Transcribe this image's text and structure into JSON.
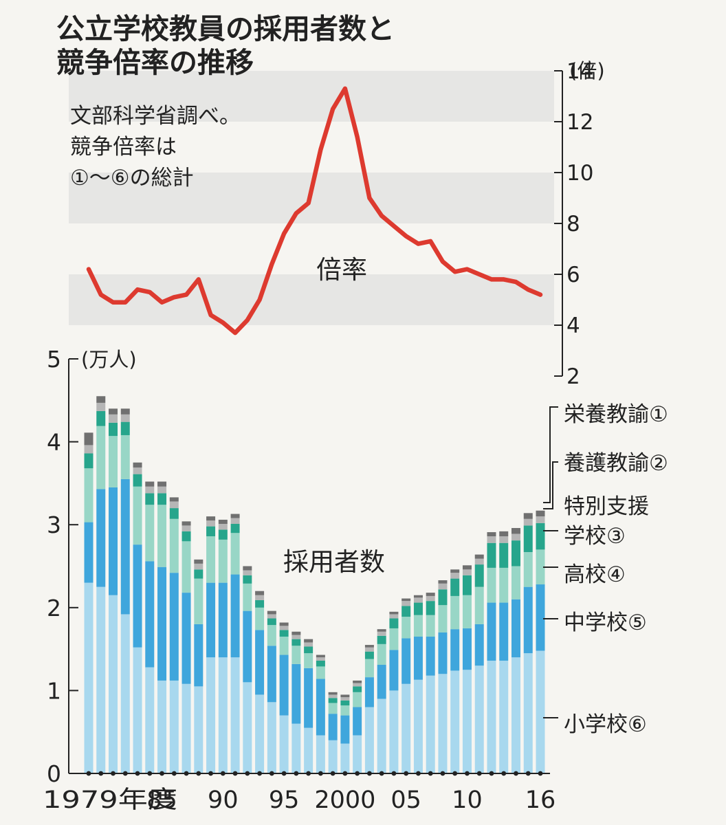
{
  "title": [
    "公立学校教員の採用者数と",
    "競争倍率の推移"
  ],
  "note": [
    "文部科学省調べ。",
    "競争倍率は",
    "①～⑥の総計"
  ],
  "colors": {
    "background": "#f6f5f1",
    "band": "#e6e6e4",
    "line": "#dd3a2f",
    "elementary": "#a8d8ee",
    "junior_high": "#3fa6dc",
    "high_school": "#98d6c6",
    "special_support": "#27a58c",
    "yogo": "#b6b6b6",
    "eiyo": "#707070",
    "axis": "#222222"
  },
  "chart_data": [
    {
      "type": "line",
      "name": "倍率",
      "label": "倍率",
      "y_unit": "(倍)",
      "ylim": [
        2,
        14
      ],
      "y_ticks": [
        2,
        4,
        6,
        8,
        10,
        12,
        14
      ],
      "grid": "alternating horizontal bands",
      "x": [
        1979,
        1980,
        1981,
        1982,
        1983,
        1984,
        1985,
        1986,
        1987,
        1988,
        1989,
        1990,
        1991,
        1992,
        1993,
        1994,
        1995,
        1996,
        1997,
        1998,
        1999,
        2000,
        2001,
        2002,
        2003,
        2004,
        2005,
        2006,
        2007,
        2008,
        2009,
        2010,
        2011,
        2012,
        2013,
        2014,
        2015,
        2016
      ],
      "values": [
        6.2,
        5.2,
        4.9,
        4.9,
        5.4,
        5.3,
        4.9,
        5.1,
        5.2,
        5.8,
        4.4,
        4.1,
        3.7,
        4.2,
        5.0,
        6.4,
        7.6,
        8.4,
        8.8,
        10.9,
        12.5,
        13.3,
        11.4,
        9.0,
        8.3,
        7.9,
        7.5,
        7.2,
        7.3,
        6.5,
        6.1,
        6.2,
        6.0,
        5.8,
        5.8,
        5.7,
        5.4,
        5.2
      ]
    },
    {
      "type": "bar",
      "stacked": true,
      "label": "採用者数",
      "y_unit": "(万人)",
      "ylim": [
        0,
        5
      ],
      "y_ticks": [
        0,
        1,
        2,
        3,
        4,
        5
      ],
      "x": [
        1979,
        1980,
        1981,
        1982,
        1983,
        1984,
        1985,
        1986,
        1987,
        1988,
        1989,
        1990,
        1991,
        1992,
        1993,
        1994,
        1995,
        1996,
        1997,
        1998,
        1999,
        2000,
        2001,
        2002,
        2003,
        2004,
        2005,
        2006,
        2007,
        2008,
        2009,
        2010,
        2011,
        2012,
        2013,
        2014,
        2015,
        2016
      ],
      "x_tick_labels": [
        {
          "year": 1979,
          "text": "1979年度"
        },
        {
          "year": 1985,
          "text": "85"
        },
        {
          "year": 1990,
          "text": "90"
        },
        {
          "year": 1995,
          "text": "95"
        },
        {
          "year": 2000,
          "text": "2000"
        },
        {
          "year": 2005,
          "text": "05"
        },
        {
          "year": 2010,
          "text": "10"
        },
        {
          "year": 2016,
          "text": "16"
        }
      ],
      "series": [
        {
          "name": "小学校⑥",
          "color_key": "elementary",
          "values": [
            2.3,
            2.25,
            2.15,
            1.92,
            1.52,
            1.28,
            1.12,
            1.12,
            1.08,
            1.05,
            1.4,
            1.4,
            1.4,
            1.1,
            0.95,
            0.86,
            0.7,
            0.6,
            0.55,
            0.46,
            0.4,
            0.36,
            0.46,
            0.8,
            0.9,
            1.0,
            1.08,
            1.13,
            1.18,
            1.2,
            1.24,
            1.25,
            1.3,
            1.36,
            1.36,
            1.4,
            1.45,
            1.48
          ]
        },
        {
          "name": "中学校⑤",
          "color_key": "junior_high",
          "values": [
            0.73,
            1.18,
            1.3,
            1.63,
            1.24,
            1.28,
            1.37,
            1.3,
            1.1,
            0.75,
            0.9,
            0.9,
            1.0,
            0.86,
            0.78,
            0.68,
            0.73,
            0.72,
            0.72,
            0.68,
            0.32,
            0.34,
            0.34,
            0.36,
            0.41,
            0.49,
            0.55,
            0.52,
            0.47,
            0.5,
            0.5,
            0.5,
            0.5,
            0.7,
            0.7,
            0.7,
            0.8,
            0.8
          ]
        },
        {
          "name": "高校④",
          "color_key": "high_school",
          "values": [
            0.65,
            0.76,
            0.62,
            0.53,
            0.7,
            0.68,
            0.75,
            0.65,
            0.62,
            0.55,
            0.56,
            0.52,
            0.5,
            0.33,
            0.27,
            0.25,
            0.22,
            0.22,
            0.18,
            0.15,
            0.13,
            0.12,
            0.18,
            0.22,
            0.25,
            0.26,
            0.26,
            0.26,
            0.26,
            0.33,
            0.4,
            0.4,
            0.45,
            0.42,
            0.42,
            0.4,
            0.42,
            0.42
          ]
        },
        {
          "name": "特別支援学校③",
          "color_key": "special_support",
          "values": [
            0.18,
            0.18,
            0.16,
            0.16,
            0.15,
            0.14,
            0.14,
            0.13,
            0.12,
            0.11,
            0.12,
            0.12,
            0.11,
            0.1,
            0.09,
            0.08,
            0.08,
            0.08,
            0.08,
            0.07,
            0.06,
            0.06,
            0.07,
            0.09,
            0.1,
            0.12,
            0.13,
            0.15,
            0.17,
            0.19,
            0.21,
            0.24,
            0.27,
            0.3,
            0.3,
            0.31,
            0.32,
            0.32
          ]
        },
        {
          "name": "養護教諭②",
          "color_key": "yogo",
          "values": [
            0.1,
            0.1,
            0.1,
            0.09,
            0.08,
            0.08,
            0.08,
            0.08,
            0.07,
            0.07,
            0.07,
            0.07,
            0.07,
            0.06,
            0.06,
            0.05,
            0.05,
            0.05,
            0.05,
            0.04,
            0.04,
            0.04,
            0.04,
            0.05,
            0.05,
            0.05,
            0.06,
            0.06,
            0.06,
            0.07,
            0.07,
            0.07,
            0.07,
            0.08,
            0.08,
            0.08,
            0.08,
            0.08
          ]
        },
        {
          "name": "栄養教諭①",
          "color_key": "eiyo",
          "values": [
            0.15,
            0.08,
            0.07,
            0.07,
            0.06,
            0.06,
            0.06,
            0.05,
            0.05,
            0.05,
            0.05,
            0.05,
            0.05,
            0.05,
            0.05,
            0.04,
            0.04,
            0.04,
            0.04,
            0.03,
            0.03,
            0.03,
            0.03,
            0.03,
            0.03,
            0.03,
            0.03,
            0.03,
            0.04,
            0.04,
            0.04,
            0.05,
            0.05,
            0.05,
            0.06,
            0.07,
            0.07,
            0.07
          ]
        }
      ],
      "legend": [
        {
          "text": "栄養教諭①"
        },
        {
          "text": "養護教諭②"
        },
        {
          "text": "特別支援"
        },
        {
          "text": "学校③"
        },
        {
          "text": "高校④"
        },
        {
          "text": "中学校⑤"
        },
        {
          "text": "小学校⑥"
        }
      ]
    }
  ]
}
